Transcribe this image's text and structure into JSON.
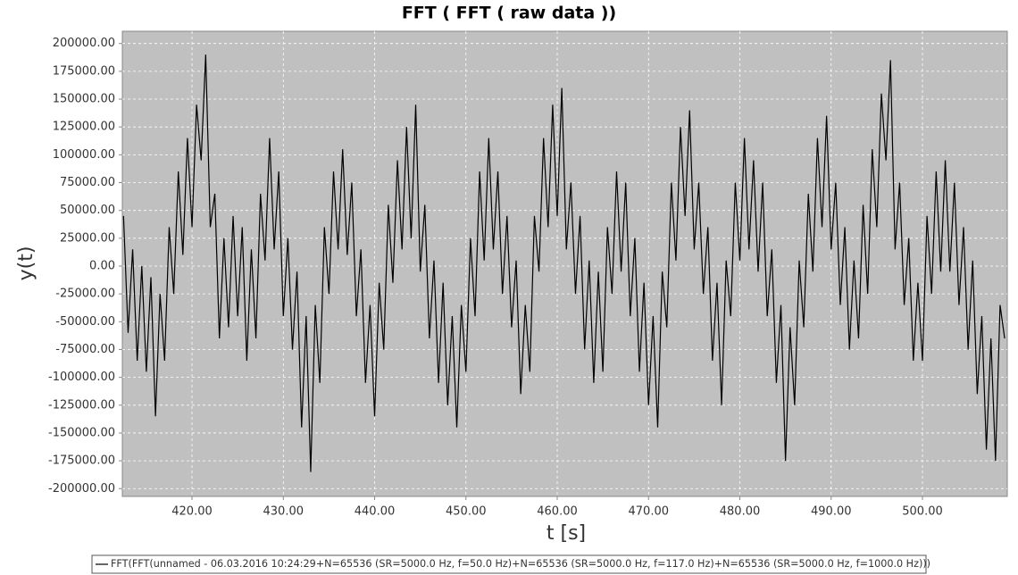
{
  "chart_data": {
    "type": "line",
    "title": "FFT ( FFT ( raw data ))",
    "x_label": "t [s]",
    "y_label": "y(t)",
    "x": [
      412.5,
      413,
      413.5,
      414,
      414.5,
      415,
      415.5,
      416,
      416.5,
      417,
      417.5,
      418,
      418.5,
      419,
      419.5,
      420,
      420.5,
      421,
      421.5,
      422,
      422.5,
      423,
      423.5,
      424,
      424.5,
      425,
      425.5,
      426,
      426.5,
      427,
      427.5,
      428,
      428.5,
      429,
      429.5,
      430,
      430.5,
      431,
      431.5,
      432,
      432.5,
      433,
      433.5,
      434,
      434.5,
      435,
      435.5,
      436,
      436.5,
      437,
      437.5,
      438,
      438.5,
      439,
      439.5,
      440,
      440.5,
      441,
      441.5,
      442,
      442.5,
      443,
      443.5,
      444,
      444.5,
      445,
      445.5,
      446,
      446.5,
      447,
      447.5,
      448,
      448.5,
      449,
      449.5,
      450,
      450.5,
      451,
      451.5,
      452,
      452.5,
      453,
      453.5,
      454,
      454.5,
      455,
      455.5,
      456,
      456.5,
      457,
      457.5,
      458,
      458.5,
      459,
      459.5,
      460,
      460.5,
      461,
      461.5,
      462,
      462.5,
      463,
      463.5,
      464,
      464.5,
      465,
      465.5,
      466,
      466.5,
      467,
      467.5,
      468,
      468.5,
      469,
      469.5,
      470,
      470.5,
      471,
      471.5,
      472,
      472.5,
      473,
      473.5,
      474,
      474.5,
      475,
      475.5,
      476,
      476.5,
      477,
      477.5,
      478,
      478.5,
      479,
      479.5,
      480,
      480.5,
      481,
      481.5,
      482,
      482.5,
      483,
      483.5,
      484,
      484.5,
      485,
      485.5,
      486,
      486.5,
      487,
      487.5,
      488,
      488.5,
      489,
      489.5,
      490,
      490.5,
      491,
      491.5,
      492,
      492.5,
      493,
      493.5,
      494,
      494.5,
      495,
      495.5,
      496,
      496.5,
      497,
      497.5,
      498,
      498.5,
      499,
      499.5,
      500,
      500.5,
      501,
      501.5,
      502,
      502.5,
      503,
      503.5,
      504,
      504.5,
      505,
      505.5,
      506,
      506.5,
      507,
      507.5,
      508,
      508.5,
      509
    ],
    "series": [
      {
        "name": "FFT(FFT(unnamed - 06.03.2016 10:24:29+N=65536 (SR=5000.0 Hz, f=50.0 Hz)+N=65536 (SR=5000.0 Hz, f=117.0 Hz)+N=65536 (SR=5000.0 Hz, f=1000.0 Hz)))",
        "color": "#000000",
        "values": [
          45000,
          -60000,
          15000,
          -85000,
          0,
          -95000,
          -10000,
          -135000,
          -25000,
          -85000,
          35000,
          -25000,
          85000,
          10000,
          115000,
          35000,
          145000,
          95000,
          190000,
          35000,
          65000,
          -65000,
          25000,
          -55000,
          45000,
          -45000,
          35000,
          -85000,
          15000,
          -65000,
          65000,
          5000,
          115000,
          15000,
          85000,
          -45000,
          25000,
          -75000,
          -5000,
          -145000,
          -45000,
          -185000,
          -35000,
          -105000,
          35000,
          -25000,
          85000,
          15000,
          105000,
          10000,
          75000,
          -45000,
          15000,
          -105000,
          -35000,
          -135000,
          -15000,
          -75000,
          55000,
          -15000,
          95000,
          15000,
          125000,
          25000,
          145000,
          -5000,
          55000,
          -65000,
          5000,
          -105000,
          -15000,
          -125000,
          -45000,
          -145000,
          -35000,
          -95000,
          25000,
          -45000,
          85000,
          5000,
          115000,
          15000,
          85000,
          -25000,
          45000,
          -55000,
          5000,
          -115000,
          -35000,
          -95000,
          45000,
          -5000,
          115000,
          35000,
          145000,
          45000,
          160000,
          15000,
          75000,
          -25000,
          45000,
          -75000,
          5000,
          -105000,
          -5000,
          -95000,
          35000,
          -25000,
          85000,
          -5000,
          75000,
          -45000,
          25000,
          -95000,
          -15000,
          -125000,
          -45000,
          -145000,
          -5000,
          -55000,
          75000,
          5000,
          125000,
          45000,
          140000,
          15000,
          75000,
          -25000,
          35000,
          -85000,
          -15000,
          -125000,
          5000,
          -45000,
          75000,
          5000,
          115000,
          15000,
          95000,
          -5000,
          75000,
          -45000,
          15000,
          -105000,
          -35000,
          -175000,
          -55000,
          -125000,
          5000,
          -55000,
          65000,
          -5000,
          115000,
          35000,
          135000,
          15000,
          75000,
          -35000,
          35000,
          -75000,
          5000,
          -65000,
          55000,
          -25000,
          105000,
          35000,
          155000,
          95000,
          185000,
          15000,
          75000,
          -35000,
          25000,
          -85000,
          -15000,
          -85000,
          45000,
          -25000,
          85000,
          -5000,
          95000,
          -5000,
          75000,
          -35000,
          35000,
          -75000,
          5000,
          -115000,
          -45000,
          -165000,
          -65000,
          -175000,
          -35000,
          -65000
        ]
      }
    ],
    "xlim": [
      412.37,
      509.29
    ],
    "ylim": [
      -207000,
      211000
    ],
    "xticks": [
      {
        "value": 420,
        "label": "420.00"
      },
      {
        "value": 430,
        "label": "430.00"
      },
      {
        "value": 440,
        "label": "440.00"
      },
      {
        "value": 450,
        "label": "450.00"
      },
      {
        "value": 460,
        "label": "460.00"
      },
      {
        "value": 470,
        "label": "470.00"
      },
      {
        "value": 480,
        "label": "480.00"
      },
      {
        "value": 490,
        "label": "490.00"
      },
      {
        "value": 500,
        "label": "500.00"
      }
    ],
    "yticks": [
      {
        "value": -200000,
        "label": "-200000.00"
      },
      {
        "value": -175000,
        "label": "-175000.00"
      },
      {
        "value": -150000,
        "label": "-150000.00"
      },
      {
        "value": -125000,
        "label": "-125000.00"
      },
      {
        "value": -100000,
        "label": "-100000.00"
      },
      {
        "value": -75000,
        "label": "-75000.00"
      },
      {
        "value": -50000,
        "label": "-50000.00"
      },
      {
        "value": -25000,
        "label": "-25000.00"
      },
      {
        "value": 0,
        "label": "0.00"
      },
      {
        "value": 25000,
        "label": "25000.00"
      },
      {
        "value": 50000,
        "label": "50000.00"
      },
      {
        "value": 75000,
        "label": "75000.00"
      },
      {
        "value": 100000,
        "label": "100000.00"
      },
      {
        "value": 125000,
        "label": "125000.00"
      },
      {
        "value": 150000,
        "label": "150000.00"
      },
      {
        "value": 175000,
        "label": "175000.00"
      },
      {
        "value": 200000,
        "label": "200000.00"
      }
    ],
    "grid": true
  }
}
